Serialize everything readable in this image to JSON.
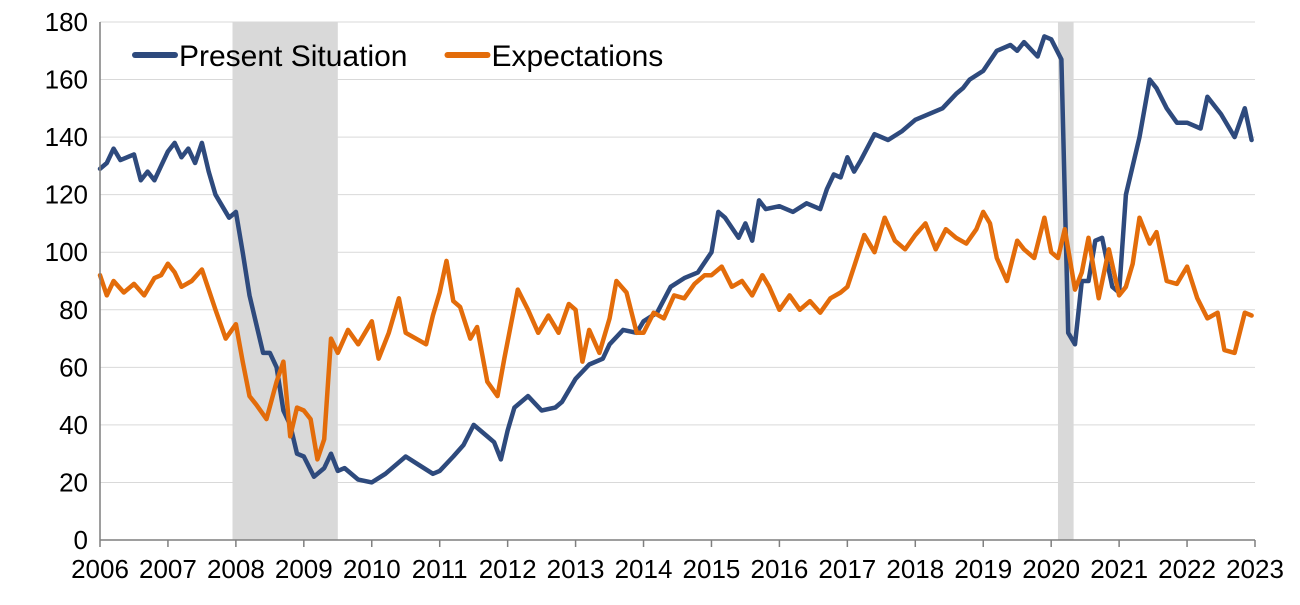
{
  "chart_data": {
    "type": "line",
    "legend_position": "top-left",
    "grid": true,
    "ylim": [
      0,
      180
    ],
    "y_ticks": [
      0,
      20,
      40,
      60,
      80,
      100,
      120,
      140,
      160,
      180
    ],
    "xlim": [
      2006,
      2023
    ],
    "x_ticks": [
      "2006",
      "2007",
      "2008",
      "2009",
      "2010",
      "2011",
      "2012",
      "2013",
      "2014",
      "2015",
      "2016",
      "2017",
      "2018",
      "2019",
      "2020",
      "2021",
      "2022",
      "2023"
    ],
    "shaded_periods": [
      {
        "start": 2007.95,
        "end": 2009.5,
        "color": "#d9d9d9"
      },
      {
        "start": 2020.1,
        "end": 2020.33,
        "color": "#d9d9d9"
      }
    ],
    "series": [
      {
        "name": "Present Situation",
        "color": "#2e4a7d",
        "x": [
          2006.0,
          2006.1,
          2006.2,
          2006.3,
          2006.5,
          2006.6,
          2006.7,
          2006.8,
          2006.9,
          2007.0,
          2007.1,
          2007.2,
          2007.3,
          2007.4,
          2007.5,
          2007.6,
          2007.7,
          2007.8,
          2007.9,
          2008.0,
          2008.1,
          2008.2,
          2008.3,
          2008.4,
          2008.5,
          2008.6,
          2008.7,
          2008.8,
          2008.9,
          2009.0,
          2009.15,
          2009.3,
          2009.4,
          2009.5,
          2009.6,
          2009.8,
          2010.0,
          2010.2,
          2010.4,
          2010.5,
          2010.7,
          2010.9,
          2011.0,
          2011.2,
          2011.35,
          2011.5,
          2011.7,
          2011.8,
          2011.9,
          2012.0,
          2012.1,
          2012.3,
          2012.5,
          2012.7,
          2012.8,
          2013.0,
          2013.2,
          2013.4,
          2013.5,
          2013.7,
          2013.9,
          2014.0,
          2014.2,
          2014.4,
          2014.6,
          2014.8,
          2015.0,
          2015.1,
          2015.2,
          2015.4,
          2015.5,
          2015.6,
          2015.7,
          2015.8,
          2016.0,
          2016.2,
          2016.4,
          2016.6,
          2016.7,
          2016.8,
          2016.9,
          2017.0,
          2017.1,
          2017.2,
          2017.4,
          2017.6,
          2017.8,
          2018.0,
          2018.2,
          2018.4,
          2018.6,
          2018.7,
          2018.8,
          2019.0,
          2019.2,
          2019.4,
          2019.5,
          2019.6,
          2019.8,
          2019.9,
          2020.0,
          2020.15,
          2020.25,
          2020.35,
          2020.45,
          2020.55,
          2020.65,
          2020.75,
          2020.9,
          2021.0,
          2021.1,
          2021.3,
          2021.45,
          2021.55,
          2021.7,
          2021.85,
          2022.0,
          2022.2,
          2022.3,
          2022.5,
          2022.7,
          2022.85,
          2022.95
        ],
        "values": [
          129,
          131,
          136,
          132,
          134,
          125,
          128,
          125,
          130,
          135,
          138,
          133,
          136,
          131,
          138,
          128,
          120,
          116,
          112,
          114,
          100,
          85,
          75,
          65,
          65,
          60,
          45,
          40,
          30,
          29,
          22,
          25,
          30,
          24,
          25,
          21,
          20,
          23,
          27,
          29,
          26,
          23,
          24,
          29,
          33,
          40,
          36,
          34,
          28,
          38,
          46,
          50,
          45,
          46,
          48,
          56,
          61,
          63,
          68,
          73,
          72,
          76,
          79,
          88,
          91,
          93,
          100,
          114,
          112,
          105,
          110,
          104,
          118,
          115,
          116,
          114,
          117,
          115,
          122,
          127,
          126,
          133,
          128,
          132,
          141,
          139,
          142,
          146,
          148,
          150,
          155,
          157,
          160,
          163,
          170,
          172,
          170,
          173,
          168,
          175,
          174,
          167,
          72,
          68,
          90,
          90,
          104,
          105,
          88,
          86,
          120,
          140,
          160,
          157,
          150,
          145,
          145,
          143,
          154,
          148,
          140,
          150,
          139
        ]
      },
      {
        "name": "Expectations",
        "color": "#e36c0a",
        "x": [
          2006.0,
          2006.1,
          2006.2,
          2006.35,
          2006.5,
          2006.65,
          2006.8,
          2006.9,
          2007.0,
          2007.1,
          2007.2,
          2007.35,
          2007.5,
          2007.6,
          2007.7,
          2007.85,
          2008.0,
          2008.1,
          2008.2,
          2008.3,
          2008.45,
          2008.6,
          2008.7,
          2008.8,
          2008.9,
          2009.0,
          2009.1,
          2009.2,
          2009.3,
          2009.4,
          2009.5,
          2009.65,
          2009.8,
          2009.9,
          2010.0,
          2010.1,
          2010.25,
          2010.4,
          2010.5,
          2010.65,
          2010.8,
          2010.9,
          2011.0,
          2011.1,
          2011.2,
          2011.3,
          2011.45,
          2011.55,
          2011.7,
          2011.85,
          2011.95,
          2012.05,
          2012.15,
          2012.3,
          2012.45,
          2012.6,
          2012.75,
          2012.9,
          2013.0,
          2013.1,
          2013.2,
          2013.35,
          2013.5,
          2013.6,
          2013.75,
          2013.9,
          2014.0,
          2014.15,
          2014.3,
          2014.45,
          2014.6,
          2014.75,
          2014.9,
          2015.0,
          2015.15,
          2015.3,
          2015.45,
          2015.6,
          2015.75,
          2015.85,
          2016.0,
          2016.15,
          2016.3,
          2016.45,
          2016.6,
          2016.75,
          2016.9,
          2017.0,
          2017.1,
          2017.25,
          2017.4,
          2017.55,
          2017.7,
          2017.85,
          2018.0,
          2018.15,
          2018.3,
          2018.45,
          2018.6,
          2018.75,
          2018.9,
          2019.0,
          2019.1,
          2019.2,
          2019.35,
          2019.5,
          2019.6,
          2019.75,
          2019.9,
          2020.0,
          2020.1,
          2020.2,
          2020.35,
          2020.45,
          2020.55,
          2020.7,
          2020.85,
          2021.0,
          2021.1,
          2021.2,
          2021.3,
          2021.45,
          2021.55,
          2021.7,
          2021.85,
          2022.0,
          2022.15,
          2022.3,
          2022.45,
          2022.55,
          2022.7,
          2022.85,
          2022.95
        ],
        "values": [
          92,
          85,
          90,
          86,
          89,
          85,
          91,
          92,
          96,
          93,
          88,
          90,
          94,
          87,
          80,
          70,
          75,
          62,
          50,
          47,
          42,
          55,
          62,
          36,
          46,
          45,
          42,
          28,
          35,
          70,
          65,
          73,
          68,
          72,
          76,
          63,
          72,
          84,
          72,
          70,
          68,
          78,
          86,
          97,
          83,
          81,
          70,
          74,
          55,
          50,
          63,
          75,
          87,
          80,
          72,
          78,
          72,
          82,
          80,
          62,
          73,
          65,
          77,
          90,
          86,
          72,
          72,
          79,
          77,
          85,
          84,
          89,
          92,
          92,
          95,
          88,
          90,
          85,
          92,
          88,
          80,
          85,
          80,
          83,
          79,
          84,
          86,
          88,
          95,
          106,
          100,
          112,
          104,
          101,
          106,
          110,
          101,
          108,
          105,
          103,
          108,
          114,
          110,
          98,
          90,
          104,
          101,
          98,
          112,
          100,
          98,
          108,
          87,
          93,
          105,
          84,
          101,
          85,
          88,
          96,
          112,
          103,
          107,
          90,
          89,
          95,
          84,
          77,
          79,
          66,
          65,
          79,
          78
        ]
      }
    ]
  }
}
